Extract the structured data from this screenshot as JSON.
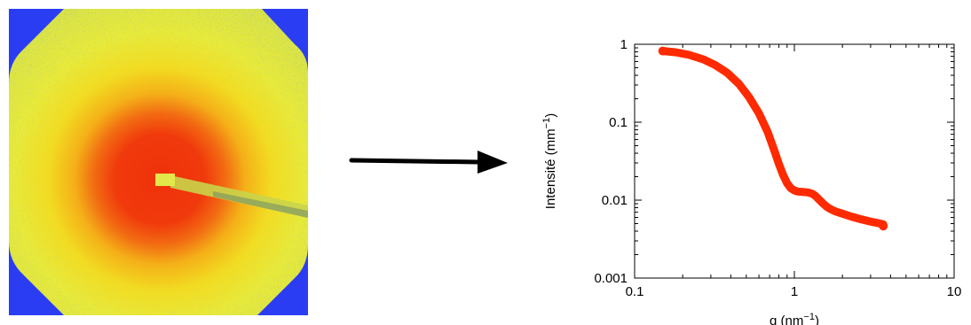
{
  "detector_image": {
    "description_icon": "saxs-2d-scattering-pattern-icon",
    "colors": {
      "background": "#2a3df2",
      "outer": "#e8ea3a",
      "mid": "#f4d41a",
      "inner": "#f2a214",
      "core": "#f0300a",
      "beamstop": "#e2e84a",
      "noise": "#3d6a6a"
    }
  },
  "arrow": {
    "icon": "right-arrow-icon",
    "color": "#000000"
  },
  "chart_data": {
    "type": "line",
    "xlabel_base": "q (nm",
    "xlabel_sup": "−1",
    "xlabel_end": ")",
    "ylabel_base": "Intensité (mm",
    "ylabel_sup": "−1",
    "ylabel_end": ")",
    "x_scale": "log",
    "y_scale": "log",
    "xlim": [
      0.1,
      10
    ],
    "ylim": [
      0.001,
      1
    ],
    "x_ticks": [
      0.1,
      1,
      10
    ],
    "x_tick_labels": [
      "0.1",
      "1",
      "10"
    ],
    "y_ticks": [
      0.001,
      0.01,
      0.1,
      1
    ],
    "y_tick_labels": [
      "0.001",
      "0.01",
      "0.1",
      "1"
    ],
    "grid": false,
    "series": [
      {
        "color": "#ff2a00",
        "x": [
          0.15,
          0.18,
          0.22,
          0.27,
          0.32,
          0.38,
          0.45,
          0.52,
          0.6,
          0.68,
          0.75,
          0.8,
          0.85,
          0.9,
          0.95,
          1.0,
          1.05,
          1.1,
          1.15,
          1.2,
          1.25,
          1.3,
          1.35,
          1.4,
          1.5,
          1.6,
          1.7,
          1.8,
          2.0,
          2.3,
          2.6,
          3.0,
          3.3,
          3.6
        ],
        "y": [
          0.82,
          0.79,
          0.73,
          0.64,
          0.54,
          0.43,
          0.31,
          0.21,
          0.13,
          0.075,
          0.043,
          0.029,
          0.021,
          0.0165,
          0.0142,
          0.0133,
          0.0129,
          0.0128,
          0.0127,
          0.0126,
          0.0124,
          0.012,
          0.0114,
          0.0106,
          0.0092,
          0.0082,
          0.0076,
          0.0072,
          0.0067,
          0.0061,
          0.0057,
          0.0053,
          0.0051,
          0.0049
        ]
      }
    ]
  }
}
